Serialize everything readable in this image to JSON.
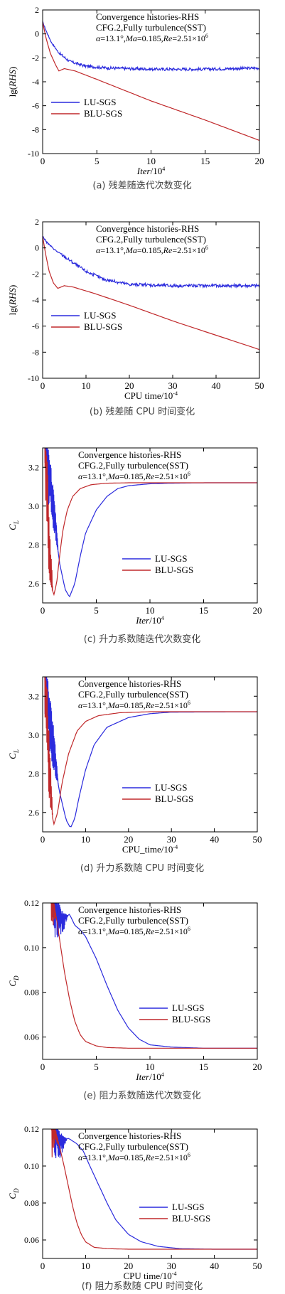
{
  "legend_entries": [
    "LU-SGS",
    "BLU-SGS"
  ],
  "colors": {
    "lu": "#2b2bdd",
    "blu": "#c0292b",
    "axis": "#000000"
  },
  "annotation": {
    "line1": "Convergence histories-RHS",
    "line2": "CFG.2,Fully turbulence(SST)",
    "line3_parts": [
      "α",
      "=13.1°,",
      "Ma",
      "=0.185,",
      "Re",
      "=2.51×10",
      "6"
    ]
  },
  "chart_data": [
    {
      "id": "a",
      "type": "line",
      "caption": "(a) 残差随迭代次数变化",
      "xlabel_main": "Iter",
      "xlabel_unit": "/10",
      "xlabel_exp": "4",
      "ylabel_main": "lg(",
      "ylabel_var": "RHS",
      "ylabel_close": ")",
      "xlim": [
        0,
        20
      ],
      "ylim": [
        -10,
        2
      ],
      "xticks": [
        0,
        5,
        10,
        15,
        20
      ],
      "yticks": [
        2,
        0,
        -2,
        -4,
        -6,
        -8,
        -10
      ],
      "series": [
        {
          "name": "LU-SGS",
          "x": [
            0,
            0.3,
            0.8,
            1.5,
            2.5,
            4,
            6,
            10,
            15,
            20
          ],
          "y": [
            1.0,
            0.3,
            -0.7,
            -1.6,
            -2.3,
            -2.7,
            -2.85,
            -2.95,
            -2.95,
            -2.85
          ]
        },
        {
          "name": "BLU-SGS",
          "x": [
            0,
            0.3,
            0.7,
            1.2,
            1.5,
            2,
            3,
            5,
            10,
            15,
            20
          ],
          "y": [
            1.0,
            -0.3,
            -1.6,
            -2.6,
            -3.1,
            -2.9,
            -3.1,
            -3.8,
            -5.6,
            -7.2,
            -8.9
          ]
        }
      ]
    },
    {
      "id": "b",
      "type": "line",
      "caption": "(b) 残差随 CPU 时间变化",
      "xlabel_main": "CPU time",
      "xlabel_unit": "/10",
      "xlabel_exp": "-4",
      "ylabel_main": "lg(",
      "ylabel_var": "RHS",
      "ylabel_close": ")",
      "xlim": [
        0,
        50
      ],
      "ylim": [
        -10,
        2
      ],
      "xticks": [
        0,
        10,
        20,
        30,
        40,
        50
      ],
      "yticks": [
        2,
        0,
        -2,
        -4,
        -6,
        -8,
        -10
      ],
      "series": [
        {
          "name": "LU-SGS",
          "x": [
            0,
            1,
            3,
            6,
            10,
            14,
            20,
            30,
            40,
            50
          ],
          "y": [
            0.9,
            0.4,
            -0.2,
            -0.9,
            -1.8,
            -2.4,
            -2.8,
            -2.9,
            -2.9,
            -2.9
          ]
        },
        {
          "name": "BLU-SGS",
          "x": [
            0,
            0.7,
            1.5,
            2.5,
            3.5,
            5,
            7,
            12,
            20,
            30,
            40,
            50
          ],
          "y": [
            0.9,
            -0.5,
            -1.8,
            -2.7,
            -3.1,
            -2.9,
            -3.0,
            -3.5,
            -4.4,
            -5.6,
            -6.7,
            -7.8
          ]
        }
      ]
    },
    {
      "id": "c",
      "type": "line",
      "caption": "(c) 升力系数随迭代次数变化",
      "xlabel_main": "Iter",
      "xlabel_unit": "/10",
      "xlabel_exp": "4",
      "ylabel_main": "C",
      "ylabel_sub": "L",
      "xlim": [
        0,
        20
      ],
      "ylim": [
        2.5,
        3.3
      ],
      "xticks": [
        0,
        5,
        10,
        15,
        20
      ],
      "yticks": [
        3.2,
        3.0,
        2.8,
        2.6
      ],
      "series": [
        {
          "name": "LU-SGS",
          "x": [
            0.2,
            1.0,
            1.6,
            2.1,
            2.5,
            3.0,
            3.5,
            4.0,
            5.0,
            6.0,
            7.0,
            8.0,
            10.0,
            12.0,
            15.0,
            20.0
          ],
          "y": [
            3.3,
            2.95,
            2.7,
            2.57,
            2.53,
            2.6,
            2.74,
            2.86,
            2.98,
            3.05,
            3.09,
            3.105,
            3.115,
            3.118,
            3.12,
            3.12
          ]
        },
        {
          "name": "BLU-SGS",
          "x": [
            0.2,
            0.6,
            1.0,
            1.3,
            1.6,
            1.9,
            2.3,
            2.8,
            3.5,
            4.5,
            6.0,
            8.0,
            20.0
          ],
          "y": [
            3.3,
            2.7,
            2.53,
            2.6,
            2.75,
            2.88,
            2.98,
            3.05,
            3.09,
            3.11,
            3.118,
            3.12,
            3.12
          ]
        }
      ]
    },
    {
      "id": "d",
      "type": "line",
      "caption": "(d) 升力系数随 CPU 时间变化",
      "xlabel_main": "CPU_time",
      "xlabel_unit": "/10",
      "xlabel_exp": "-4",
      "ylabel_main": "C",
      "ylabel_sub": "L",
      "xlim": [
        0,
        50
      ],
      "ylim": [
        2.5,
        3.3
      ],
      "xticks": [
        0,
        10,
        20,
        30,
        40,
        50
      ],
      "yticks": [
        3.2,
        3.0,
        2.8,
        2.6
      ],
      "series": [
        {
          "name": "LU-SGS",
          "x": [
            0.5,
            2.0,
            4.0,
            5.5,
            6.5,
            7.5,
            8.5,
            10.0,
            12.0,
            15.0,
            20.0,
            25.0,
            30.0,
            50.0
          ],
          "y": [
            3.3,
            2.95,
            2.7,
            2.56,
            2.52,
            2.57,
            2.68,
            2.82,
            2.95,
            3.04,
            3.09,
            3.11,
            3.118,
            3.12
          ]
        },
        {
          "name": "BLU-SGS",
          "x": [
            0.5,
            1.5,
            2.5,
            3.5,
            4.5,
            6.0,
            8.0,
            10.0,
            13.0,
            18.0,
            25.0,
            50.0
          ],
          "y": [
            3.3,
            2.75,
            2.53,
            2.6,
            2.75,
            2.9,
            3.02,
            3.07,
            3.1,
            3.115,
            3.12,
            3.12
          ]
        }
      ]
    },
    {
      "id": "e",
      "type": "line",
      "caption": "(e) 阻力系数随迭代次数变化",
      "xlabel_main": "Iter",
      "xlabel_unit": "/10",
      "xlabel_exp": "4",
      "ylabel_main": "C",
      "ylabel_sub": "D",
      "xlim": [
        0,
        20
      ],
      "ylim": [
        0.05,
        0.12
      ],
      "xticks": [
        0,
        5,
        10,
        15,
        20
      ],
      "yticks": [
        0.12,
        0.1,
        0.08,
        0.06
      ],
      "series": [
        {
          "name": "LU-SGS",
          "x": [
            1.0,
            1.8,
            2.5,
            3.0,
            3.5,
            4.0,
            5.0,
            6.0,
            7.0,
            8.0,
            9.0,
            10.0,
            12.0,
            15.0,
            20.0
          ],
          "y": [
            0.12,
            0.112,
            0.115,
            0.11,
            0.108,
            0.105,
            0.095,
            0.083,
            0.072,
            0.064,
            0.059,
            0.0565,
            0.0555,
            0.055,
            0.055
          ]
        },
        {
          "name": "BLU-SGS",
          "x": [
            0.8,
            1.0,
            1.3,
            1.6,
            2.0,
            2.5,
            3.0,
            3.5,
            4.0,
            5.0,
            6.0,
            8.0,
            20.0
          ],
          "y": [
            0.12,
            0.119,
            0.113,
            0.103,
            0.09,
            0.077,
            0.067,
            0.061,
            0.058,
            0.056,
            0.0553,
            0.055,
            0.055
          ]
        }
      ]
    },
    {
      "id": "f",
      "type": "line",
      "caption": "(f) 阻力系数随 CPU 时间变化",
      "xlabel_main": "CPU time",
      "xlabel_unit": "/10",
      "xlabel_exp": "-4",
      "ylabel_main": "C",
      "ylabel_sub": "D",
      "xlim": [
        0,
        50
      ],
      "ylim": [
        0.05,
        0.12
      ],
      "xticks": [
        0,
        10,
        20,
        30,
        40,
        50
      ],
      "yticks": [
        0.12,
        0.1,
        0.08,
        0.06
      ],
      "series": [
        {
          "name": "LU-SGS",
          "x": [
            2.5,
            4.0,
            6.0,
            8.0,
            9.5,
            11.0,
            13.0,
            15.0,
            17.0,
            20.0,
            23.0,
            27.0,
            32.0,
            40.0,
            50.0
          ],
          "y": [
            0.12,
            0.113,
            0.115,
            0.112,
            0.108,
            0.1,
            0.09,
            0.08,
            0.071,
            0.063,
            0.059,
            0.0565,
            0.0553,
            0.055,
            0.055
          ]
        },
        {
          "name": "BLU-SGS",
          "x": [
            2.0,
            3.0,
            4.0,
            5.0,
            6.0,
            7.0,
            8.0,
            9.0,
            10.0,
            12.0,
            15.0,
            20.0,
            50.0
          ],
          "y": [
            0.12,
            0.117,
            0.11,
            0.1,
            0.089,
            0.078,
            0.069,
            0.063,
            0.059,
            0.056,
            0.0553,
            0.055,
            0.055
          ]
        }
      ]
    }
  ]
}
